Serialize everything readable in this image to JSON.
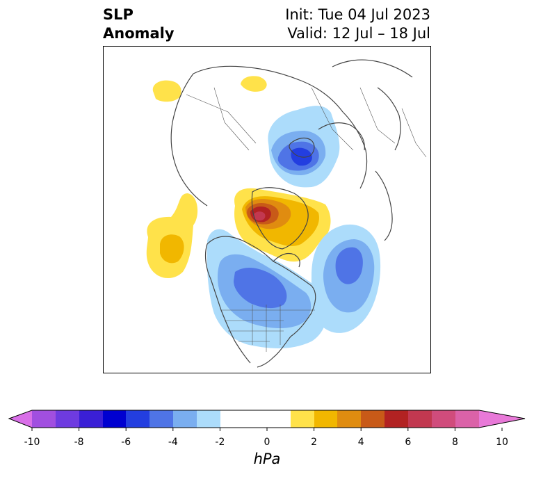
{
  "title": {
    "left_line1": "SLP",
    "left_line2": "Anomaly",
    "right_line1": "Init: Tue 04 Jul 2023",
    "right_line2": "Valid: 12 Jul – 18 Jul"
  },
  "colorbar": {
    "unit": "hPa",
    "ticks": [
      "-10",
      "-8",
      "-6",
      "-4",
      "-2",
      "0",
      "2",
      "4",
      "6",
      "8",
      "10"
    ],
    "colors": {
      "under": "#d96fe8",
      "n9": "#a14fe0",
      "n8": "#6e3be0",
      "n7": "#3a1fd6",
      "n6": "#0000d0",
      "n5": "#233ee0",
      "n4": "#4f74e6",
      "n3": "#7aaef0",
      "n2": "#acdcfb",
      "zero": "#ffffff",
      "p2": "#ffe24a",
      "p3": "#f1b700",
      "p4": "#e08c10",
      "p5": "#c85a18",
      "p6": "#b22222",
      "p7": "#c23850",
      "p8": "#d04c7c",
      "p9": "#db62a8",
      "over": "#e879d8"
    }
  }
}
